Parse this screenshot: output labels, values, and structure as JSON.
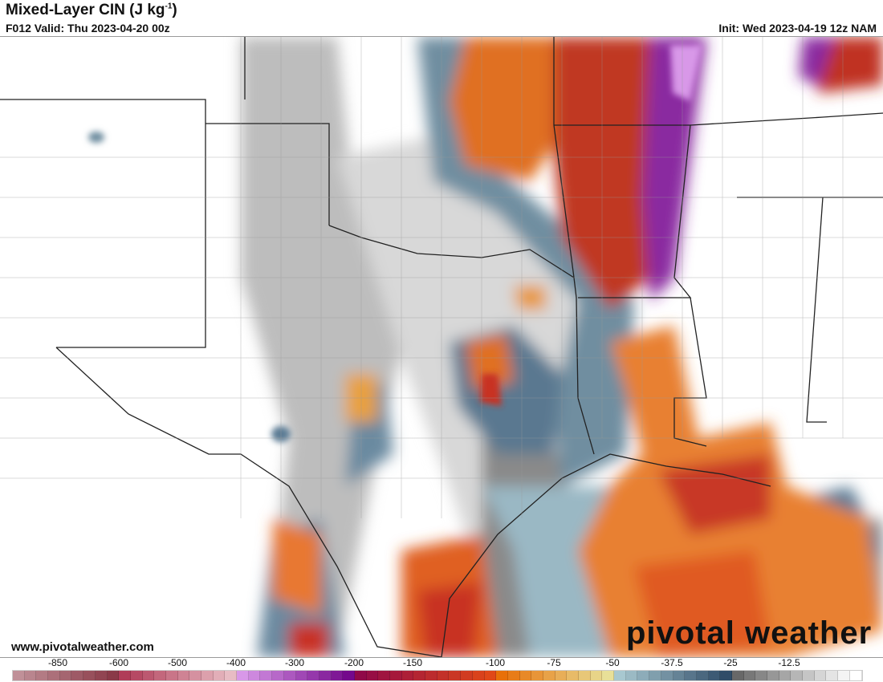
{
  "header": {
    "title_main": "Mixed-Layer CIN (J kg",
    "title_sup": "-1",
    "title_end": ")",
    "valid": "F012 Valid: Thu 2023-04-20 00z",
    "init": "Init: Wed 2023-04-19 12z NAM"
  },
  "footer": {
    "website": "www.pivotalweather.com",
    "logo": "pivotal weather"
  },
  "colorbar": {
    "ticks": [
      "-850",
      "-600",
      "-500",
      "-400",
      "-300",
      "-200",
      "-150",
      "-100",
      "-75",
      "-50",
      "-37.5",
      "-25",
      "-12.5"
    ],
    "groups": [
      {
        "from": "#c09098",
        "to": "#8a3a48",
        "count": 9
      },
      {
        "from": "#b03c58",
        "to": "#e8bcc4",
        "count": 10
      },
      {
        "from": "#d898e8",
        "to": "#74088c",
        "count": 10
      },
      {
        "from": "#900848",
        "to": "#e04818",
        "count": 12
      },
      {
        "from": "#e87008",
        "to": "#e8e098",
        "count": 10
      },
      {
        "from": "#a8c8d0",
        "to": "#304c68",
        "count": 10
      },
      {
        "from": "#686868",
        "to": "#f4f4f4",
        "count": 10
      },
      {
        "from": "#ffffff",
        "to": "#ffffff",
        "count": 1
      }
    ]
  }
}
